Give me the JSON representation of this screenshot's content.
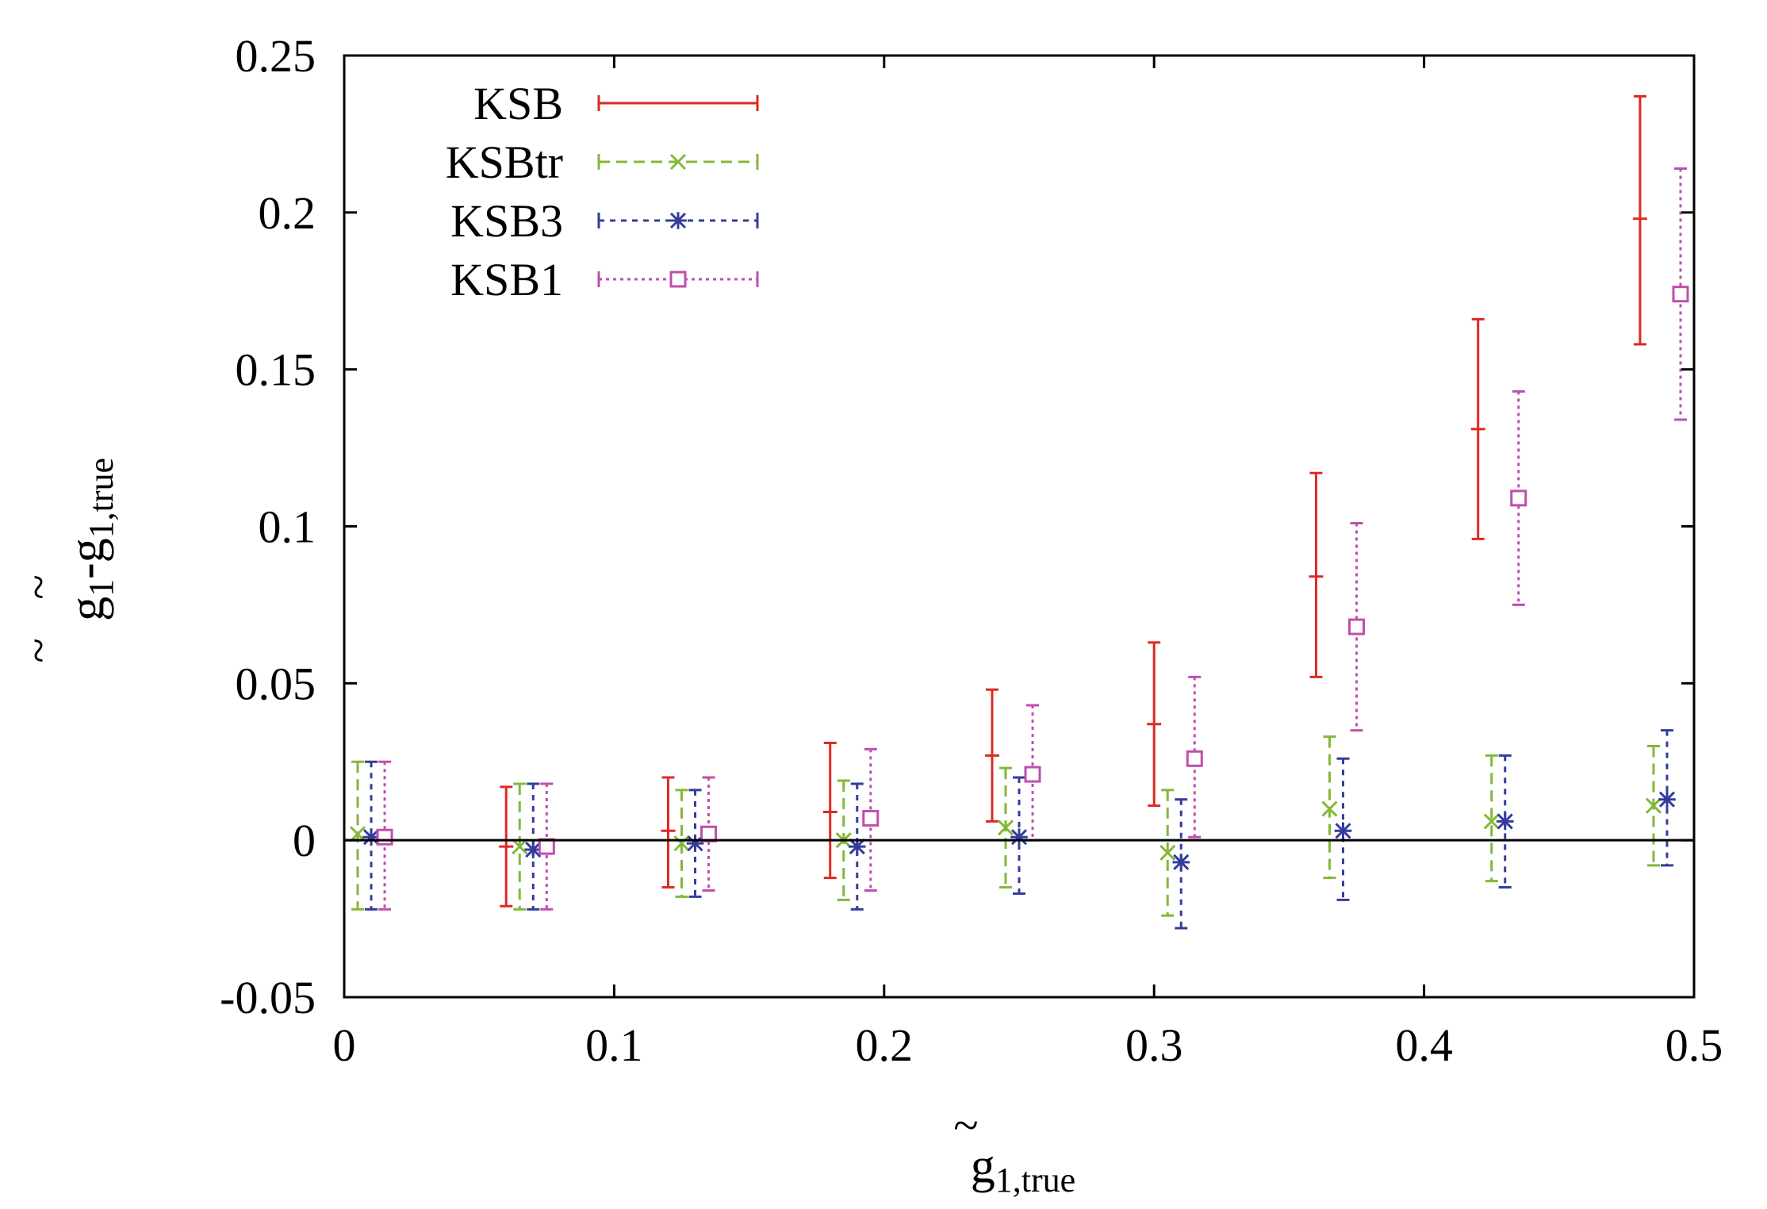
{
  "chart_data": {
    "type": "scatter",
    "title": "",
    "xlabel": {
      "tilde": "~",
      "base": "g",
      "sub": "1,true"
    },
    "ylabel": {
      "tilde1": "~",
      "base1": "g",
      "sub1": "1",
      "sep": "-",
      "base2": "g",
      "sub2": "1,true",
      "tilde2": "~"
    },
    "xlim": [
      0,
      0.5
    ],
    "ylim": [
      -0.05,
      0.25
    ],
    "xticks": [
      "0",
      "0.1",
      "0.2",
      "0.3",
      "0.4",
      "0.5"
    ],
    "yticks": [
      "-0.05",
      "0",
      "0.05",
      "0.1",
      "0.15",
      "0.2",
      "0.25"
    ],
    "grid": false,
    "legend_position": "top-left",
    "zero_line": true,
    "series": [
      {
        "name": "KSB",
        "color": "#dd2a22",
        "dash": "solid",
        "marker": "plus",
        "x": [
          0.06,
          0.12,
          0.18,
          0.24,
          0.3,
          0.36,
          0.42,
          0.48
        ],
        "y": [
          -0.002,
          0.003,
          0.009,
          0.027,
          0.037,
          0.084,
          0.131,
          0.198
        ],
        "ylow": [
          -0.021,
          -0.015,
          -0.012,
          0.006,
          0.011,
          0.052,
          0.096,
          0.158
        ],
        "yhigh": [
          0.017,
          0.02,
          0.031,
          0.048,
          0.063,
          0.117,
          0.166,
          0.237
        ]
      },
      {
        "name": "KSBtr",
        "color": "#84b838",
        "dash": "dashed",
        "marker": "cross",
        "x": [
          0.005,
          0.065,
          0.125,
          0.185,
          0.245,
          0.305,
          0.365,
          0.425,
          0.485
        ],
        "y": [
          0.002,
          -0.002,
          -0.001,
          0.0,
          0.004,
          -0.004,
          0.01,
          0.006,
          0.011
        ],
        "ylow": [
          -0.022,
          -0.022,
          -0.018,
          -0.019,
          -0.015,
          -0.024,
          -0.012,
          -0.013,
          -0.008
        ],
        "yhigh": [
          0.025,
          0.018,
          0.016,
          0.019,
          0.023,
          0.016,
          0.033,
          0.027,
          0.03
        ]
      },
      {
        "name": "KSB3",
        "color": "#333c9c",
        "dash": "dotted",
        "marker": "star",
        "x": [
          0.01,
          0.07,
          0.13,
          0.19,
          0.25,
          0.31,
          0.37,
          0.43,
          0.49
        ],
        "y": [
          0.001,
          -0.003,
          -0.001,
          -0.002,
          0.001,
          -0.007,
          0.003,
          0.006,
          0.013
        ],
        "ylow": [
          -0.022,
          -0.022,
          -0.018,
          -0.022,
          -0.017,
          -0.028,
          -0.019,
          -0.015,
          -0.008
        ],
        "yhigh": [
          0.025,
          0.018,
          0.016,
          0.018,
          0.02,
          0.013,
          0.026,
          0.027,
          0.035
        ]
      },
      {
        "name": "KSB1",
        "color": "#c04eac",
        "dash": "dotted-fine",
        "marker": "square",
        "x": [
          0.015,
          0.075,
          0.135,
          0.195,
          0.255,
          0.315,
          0.375,
          0.435,
          0.495
        ],
        "y": [
          0.001,
          -0.002,
          0.002,
          0.007,
          0.021,
          0.026,
          0.068,
          0.109,
          0.174
        ],
        "ylow": [
          -0.022,
          -0.022,
          -0.016,
          -0.016,
          0.0,
          0.001,
          0.035,
          0.075,
          0.134
        ],
        "yhigh": [
          0.025,
          0.018,
          0.02,
          0.029,
          0.043,
          0.052,
          0.101,
          0.143,
          0.214
        ]
      }
    ]
  }
}
